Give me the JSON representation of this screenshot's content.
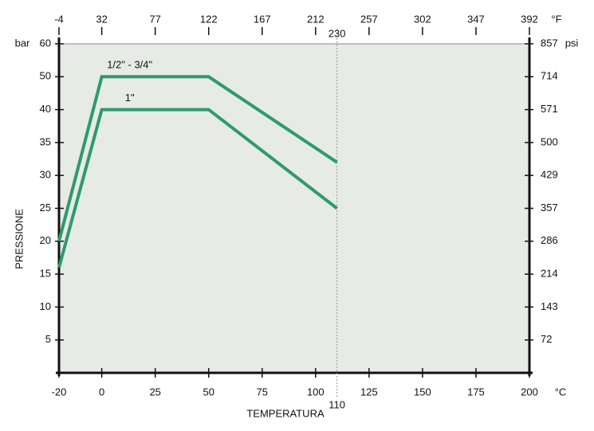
{
  "chart_data": {
    "type": "line",
    "y_label": "PRESSIONE",
    "x_label": "TEMPERATURA",
    "y_unit": "bar",
    "y2_unit": "psi",
    "x_unit": "°C",
    "x2_unit": "°F",
    "series": [
      {
        "name": "1/2\" - 3/4\"",
        "color": "#2e9a6a",
        "x": [
          -20,
          0,
          50,
          110
        ],
        "values": [
          20,
          50,
          50,
          32
        ]
      },
      {
        "name": "1\"",
        "color": "#2e9a6a",
        "x": [
          -20,
          0,
          50,
          110
        ],
        "values": [
          16,
          40,
          40,
          25
        ]
      }
    ],
    "xlim": [
      -20,
      200
    ],
    "xticks": [
      -20,
      0,
      25,
      50,
      75,
      100,
      125,
      150,
      175,
      200
    ],
    "x2lim": [
      -4,
      392
    ],
    "x2ticks": [
      -4,
      32,
      77,
      122,
      167,
      212,
      257,
      302,
      347,
      392
    ],
    "ylim": [
      0,
      60
    ],
    "yticks": [
      5,
      10,
      15,
      20,
      25,
      30,
      35,
      40,
      50,
      60
    ],
    "y2lim": [
      0,
      857
    ],
    "y2ticks": [
      72,
      143,
      214,
      286,
      357,
      429,
      500,
      571,
      714,
      857
    ],
    "marker_x": 110,
    "marker_x2": 230
  }
}
